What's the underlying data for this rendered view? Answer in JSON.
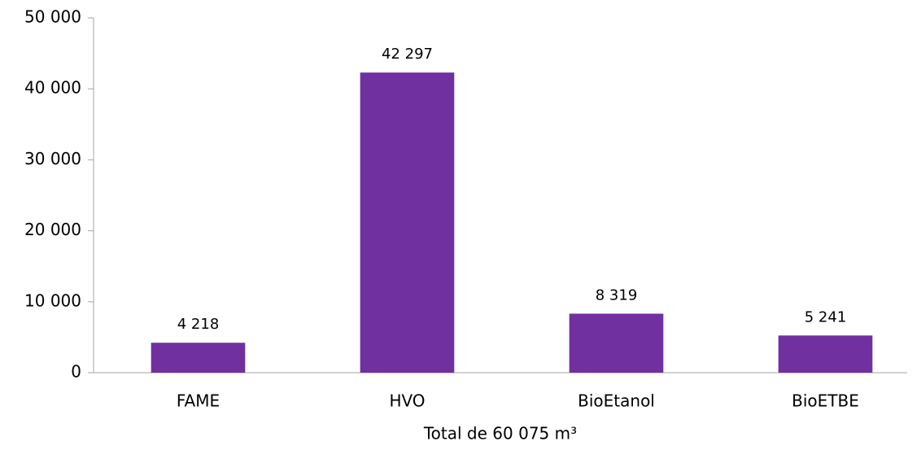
{
  "chart_data": {
    "type": "bar",
    "x_label": "Total de 60 075 m³",
    "categories": [
      "FAME",
      "HVO",
      "BioEtanol",
      "BioETBE"
    ],
    "values": [
      4218,
      42297,
      8319,
      5241
    ],
    "value_labels": [
      "4 218",
      "42 297",
      "8 319",
      "5 241"
    ],
    "color": "#7030a0",
    "ylim": [
      0,
      50000
    ],
    "yticks": [
      0,
      {
        "value": 10000,
        "label": "10 000"
      },
      {
        "value": 20000,
        "label": "20 000"
      },
      {
        "value": 30000,
        "label": "30 000"
      },
      {
        "value": 40000,
        "label": "40 000"
      },
      {
        "value": 50000,
        "label": "50 000"
      }
    ],
    "grid": false
  }
}
